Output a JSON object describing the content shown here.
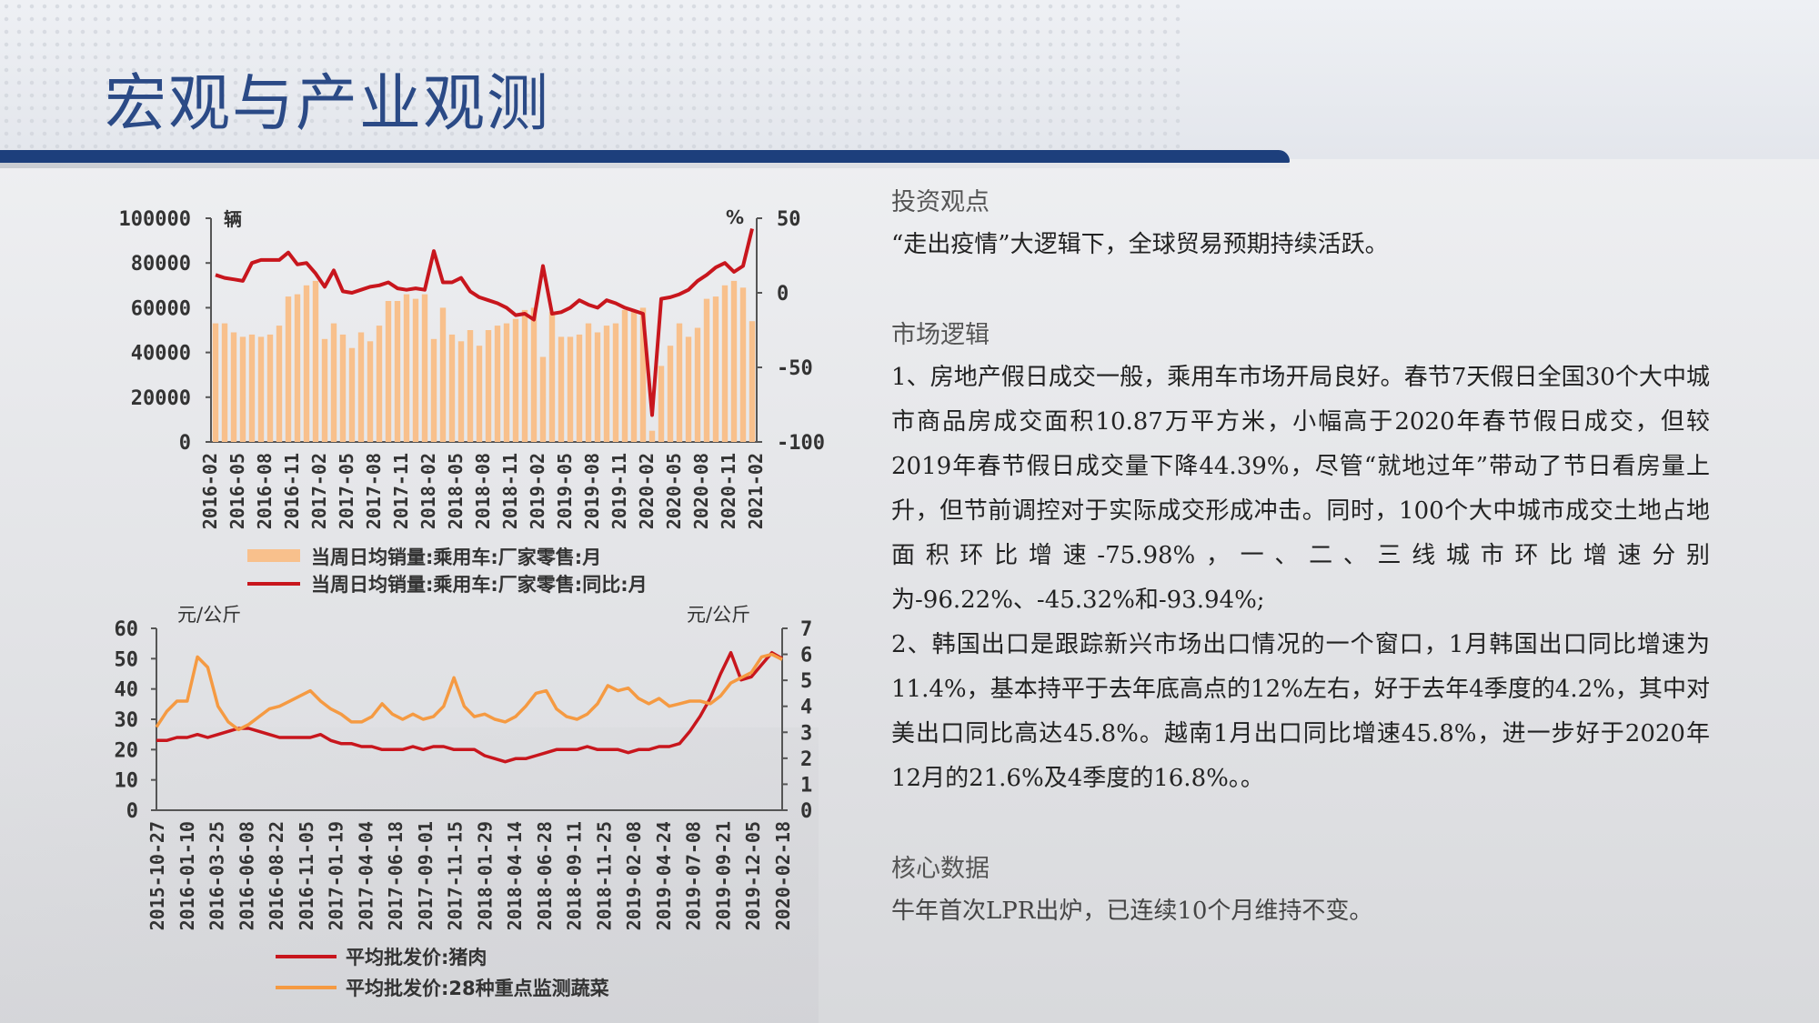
{
  "page": {
    "title": "宏观与产业观测"
  },
  "colors": {
    "title_blue": "#2b4a86",
    "bar_orange": "#f8c08c",
    "line_red": "#c8161d",
    "line_orange": "#f59a42",
    "axis": "#555555"
  },
  "panel": {
    "sections": [
      {
        "heading": "投资观点",
        "paragraphs": [
          "“走出疫情”大逻辑下，全球贸易预期持续活跃。"
        ]
      },
      {
        "heading": "市场逻辑",
        "paragraphs": [
          "1、房地产假日成交一般，乘用车市场开局良好。春节7天假日全国30个大中城市商品房成交面积10.87万平方米，小幅高于2020年春节假日成交，但较2019年春节假日成交量下降44.39%，尽管“就地过年”带动了节日看房量上升，但节前调控对于实际成交形成冲击。同时，100个大中城市成交土地占地面积环比增速-75.98%，一、二、三线城市环比增速分别为-96.22%、-45.32%和-93.94%;",
          "2、韩国出口是跟踪新兴市场出口情况的一个窗口，1月韩国出口同比增速为11.4%，基本持平于去年底高点的12%左右，好于去年4季度的4.2%，其中对美出口同比高达45.8%。越南1月出口同比增速45.8%，进一步好于2020年12月的21.6%及4季度的16.8%。。"
        ]
      },
      {
        "heading": "核心数据",
        "paragraphs": [
          "牛年首次LPR出炉，已连续10个月维持不变。"
        ]
      }
    ]
  },
  "chart_data": [
    {
      "type": "bar+line",
      "left_unit": "辆",
      "right_unit": "%",
      "y_left_ticks": [
        "100000",
        "80000",
        "60000",
        "40000",
        "20000",
        "0"
      ],
      "y_right_ticks": [
        "50",
        "0",
        "-50",
        "-100"
      ],
      "ylim_left": [
        0,
        100000
      ],
      "ylim_right": [
        -100,
        50
      ],
      "x_tick_labels": [
        "2016-02",
        "2016-05",
        "2016-08",
        "2016-11",
        "2017-02",
        "2017-05",
        "2017-08",
        "2017-11",
        "2018-02",
        "2018-05",
        "2018-08",
        "2018-11",
        "2019-02",
        "2019-05",
        "2019-08",
        "2019-11",
        "2020-02",
        "2020-05",
        "2020-08",
        "2020-11",
        "2021-02"
      ],
      "bars": {
        "name": "当周日均销量:乘用车:厂家零售:月",
        "values": [
          53000,
          53000,
          49000,
          47000,
          48000,
          47000,
          48000,
          52000,
          65000,
          66000,
          70000,
          72000,
          46000,
          53000,
          48000,
          42000,
          49000,
          45000,
          52000,
          63000,
          63000,
          66000,
          64000,
          66000,
          46000,
          60000,
          48000,
          45000,
          50000,
          43000,
          50000,
          52000,
          53000,
          55000,
          59000,
          60000,
          38000,
          58000,
          47000,
          47000,
          48000,
          53000,
          49000,
          52000,
          53000,
          59000,
          59000,
          60000,
          5000,
          34000,
          43000,
          53000,
          47000,
          51000,
          64000,
          65000,
          70000,
          72000,
          69000,
          54000
        ]
      },
      "line": {
        "name": "当周日均销量:乘用车:厂家零售:同比:月",
        "values": [
          12,
          10,
          9,
          8,
          20,
          22,
          22,
          22,
          27,
          19,
          20,
          13,
          4,
          15,
          1,
          0,
          2,
          4,
          5,
          7,
          3,
          2,
          3,
          2,
          28,
          7,
          7,
          10,
          1,
          -3,
          -5,
          -7,
          -10,
          -15,
          -14,
          -18,
          18,
          -14,
          -13,
          -10,
          -5,
          -8,
          -10,
          -5,
          -7,
          -10,
          -12,
          -14,
          -82,
          -4,
          -3,
          -1,
          2,
          8,
          12,
          17,
          20,
          14,
          18,
          43
        ]
      },
      "legend": "bottom"
    },
    {
      "type": "line",
      "left_unit": "元/公斤",
      "right_unit": "元/公斤",
      "y_left_ticks": [
        "60",
        "50",
        "40",
        "30",
        "20",
        "10",
        "0"
      ],
      "y_right_ticks": [
        "7",
        "6",
        "5",
        "4",
        "3",
        "2",
        "1",
        "0"
      ],
      "ylim_left": [
        0,
        60
      ],
      "ylim_right": [
        0,
        7
      ],
      "x_tick_labels": [
        "2015-10-27",
        "2016-01-10",
        "2016-03-25",
        "2016-06-08",
        "2016-08-22",
        "2016-11-05",
        "2017-01-19",
        "2017-04-04",
        "2017-06-18",
        "2017-09-01",
        "2017-11-15",
        "2018-01-29",
        "2018-04-14",
        "2018-06-28",
        "2018-09-11",
        "2018-11-25",
        "2019-02-08",
        "2019-04-24",
        "2019-07-08",
        "2019-09-21",
        "2019-12-05",
        "2020-02-18"
      ],
      "series": [
        {
          "name": "平均批发价:猪肉",
          "axis": "left",
          "values": [
            23,
            23,
            24,
            24,
            25,
            24,
            25,
            26,
            27,
            27,
            26,
            25,
            24,
            24,
            24,
            24,
            25,
            23,
            22,
            22,
            21,
            21,
            20,
            20,
            20,
            21,
            20,
            21,
            21,
            20,
            20,
            20,
            18,
            17,
            16,
            17,
            17,
            18,
            19,
            20,
            20,
            20,
            21,
            20,
            20,
            20,
            19,
            20,
            20,
            21,
            21,
            22,
            26,
            31,
            37,
            45,
            52,
            43,
            44,
            48,
            52,
            50
          ]
        },
        {
          "name": "平均批发价:28种重点监测蔬菜",
          "axis": "right",
          "values": [
            3.2,
            3.8,
            4.2,
            4.2,
            5.9,
            5.5,
            4.0,
            3.4,
            3.1,
            3.3,
            3.6,
            3.9,
            4.0,
            4.2,
            4.4,
            4.6,
            4.2,
            3.9,
            3.7,
            3.4,
            3.4,
            3.6,
            4.1,
            3.7,
            3.5,
            3.7,
            3.5,
            3.6,
            4.0,
            5.1,
            4.0,
            3.6,
            3.7,
            3.5,
            3.4,
            3.6,
            4.0,
            4.5,
            4.6,
            3.9,
            3.6,
            3.5,
            3.7,
            4.1,
            4.8,
            4.6,
            4.7,
            4.3,
            4.1,
            4.3,
            4.0,
            4.1,
            4.2,
            4.2,
            4.1,
            4.4,
            4.9,
            5.1,
            5.3,
            5.9,
            6.0,
            5.8
          ]
        }
      ],
      "legend": "bottom"
    }
  ]
}
